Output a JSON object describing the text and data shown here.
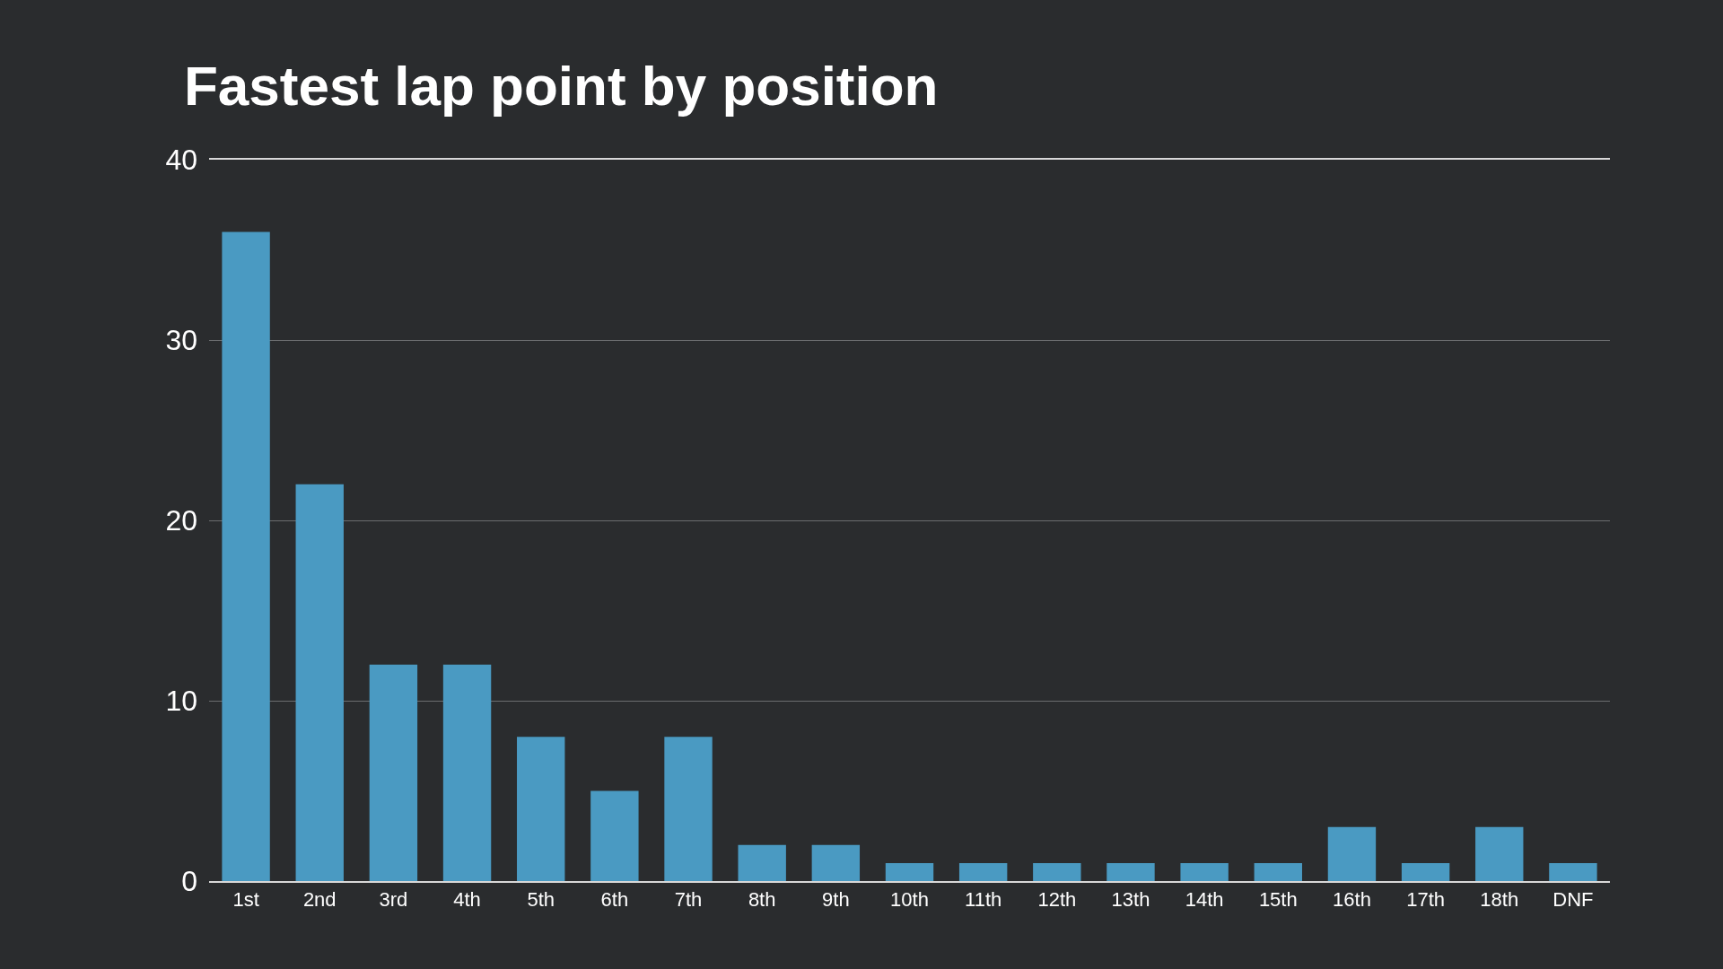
{
  "chart_data": {
    "type": "bar",
    "title": "Fastest lap point by position",
    "categories": [
      "1st",
      "2nd",
      "3rd",
      "4th",
      "5th",
      "6th",
      "7th",
      "8th",
      "9th",
      "10th",
      "11th",
      "12th",
      "13th",
      "14th",
      "15th",
      "16th",
      "17th",
      "18th",
      "DNF"
    ],
    "values": [
      36,
      22,
      12,
      12,
      8,
      5,
      8,
      2,
      2,
      1,
      1,
      1,
      1,
      1,
      1,
      3,
      1,
      3,
      1
    ],
    "color": "#4a9ac2",
    "ylim": [
      0,
      40
    ],
    "yticks": [
      0,
      10,
      20,
      30,
      40
    ],
    "grid": "y"
  }
}
